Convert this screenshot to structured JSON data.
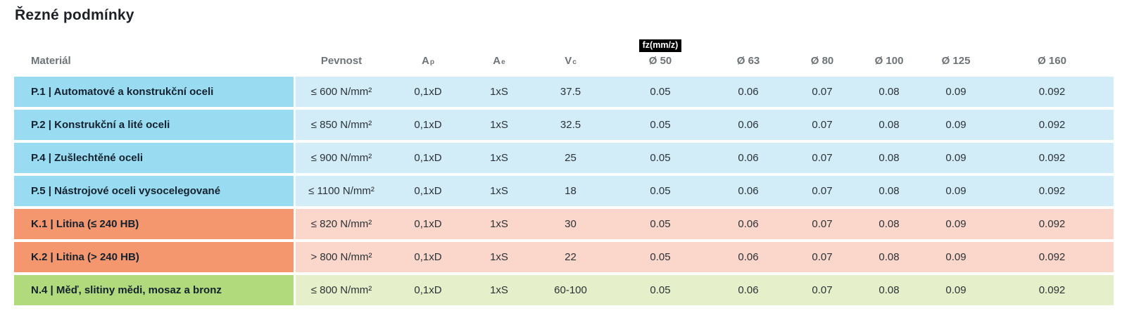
{
  "page": {
    "title": "Řezné podmínky"
  },
  "colors": {
    "steel-dark": "#99dcf2",
    "steel-light": "#d3edf8",
    "cast-dark": "#f4976f",
    "cast-light": "#fad7ca",
    "nonferrous-dark": "#b1da7d",
    "nonferrous-light": "#e5f0ca",
    "badge-bg": "#000000",
    "badge-text": "#ffffff",
    "header-text": "#6d7377",
    "label-text": "#14212e",
    "cell-text": "#2c3237",
    "title-text": "#1d2126"
  },
  "table": {
    "headers": {
      "material": "Materiál",
      "pevnost": "Pevnost",
      "ap": {
        "base": "A",
        "sub": "p"
      },
      "ae": {
        "base": "A",
        "sub": "e"
      },
      "vc": {
        "base": "V",
        "sub": "c"
      },
      "fz_badge": "fz(mm/z)",
      "diameters": [
        "Ø 50",
        "Ø 63",
        "Ø 80",
        "Ø 100",
        "Ø 125",
        "Ø 160"
      ]
    },
    "rows": [
      {
        "group": "steel",
        "material": "P.1 | Automatové a konstrukční oceli",
        "pevnost": "≤ 600 N/mm²",
        "ap": "0,1xD",
        "ae": "1xS",
        "vc": "37.5",
        "fz": [
          "0.05",
          "0.06",
          "0.07",
          "0.08",
          "0.09",
          "0.092"
        ]
      },
      {
        "group": "steel",
        "material": "P.2 | Konstrukční a lité oceli",
        "pevnost": "≤ 850 N/mm²",
        "ap": "0,1xD",
        "ae": "1xS",
        "vc": "32.5",
        "fz": [
          "0.05",
          "0.06",
          "0.07",
          "0.08",
          "0.09",
          "0.092"
        ]
      },
      {
        "group": "steel",
        "material": "P.4 | Zušlechtěné oceli",
        "pevnost": "≤ 900 N/mm²",
        "ap": "0,1xD",
        "ae": "1xS",
        "vc": "25",
        "fz": [
          "0.05",
          "0.06",
          "0.07",
          "0.08",
          "0.09",
          "0.092"
        ]
      },
      {
        "group": "steel",
        "material": "P.5 | Nástrojové oceli vysocelegované",
        "pevnost": "≤ 1100 N/mm²",
        "ap": "0,1xD",
        "ae": "1xS",
        "vc": "18",
        "fz": [
          "0.05",
          "0.06",
          "0.07",
          "0.08",
          "0.09",
          "0.092"
        ]
      },
      {
        "group": "cast",
        "material": "K.1 | Litina (≤ 240 HB)",
        "pevnost": "≤ 820 N/mm²",
        "ap": "0,1xD",
        "ae": "1xS",
        "vc": "30",
        "fz": [
          "0.05",
          "0.06",
          "0.07",
          "0.08",
          "0.09",
          "0.092"
        ]
      },
      {
        "group": "cast",
        "material": "K.2 | Litina (> 240 HB)",
        "pevnost": "> 800 N/mm²",
        "ap": "0,1xD",
        "ae": "1xS",
        "vc": "22",
        "fz": [
          "0.05",
          "0.06",
          "0.07",
          "0.08",
          "0.09",
          "0.092"
        ]
      },
      {
        "group": "nonferrous",
        "material": "N.4 | Měď, slitiny mědi, mosaz a bronz",
        "pevnost": "≤ 800 N/mm²",
        "ap": "0,1xD",
        "ae": "1xS",
        "vc": "60-100",
        "fz": [
          "0.05",
          "0.06",
          "0.07",
          "0.08",
          "0.09",
          "0.092"
        ]
      }
    ]
  }
}
